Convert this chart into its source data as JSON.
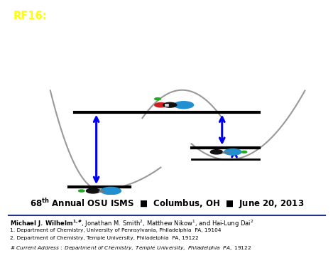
{
  "title_prefix": "RF16:",
  "title_bg": "#505050",
  "title_prefix_color": "#ffff00",
  "title_text_color": "#ffffff",
  "bg_color": "#ffffff",
  "pot_well_color": "#999999",
  "arrow_color": "#0000ee",
  "line_color": "#000000",
  "molecule_blue": "#2090d0",
  "molecule_black": "#111111",
  "molecule_red": "#cc2222",
  "molecule_green": "#22aa22",
  "affil1": "1. Department of Chemistry, University of Pennsylvania, Philadelphia  PA, 19104",
  "affil2": "2. Department of Chemistry, Temple University, Philadelphia  PA, 19122",
  "affil3": "# Current Address: Department of Chemistry, Temple University, Philadelphia  PA, 19122"
}
